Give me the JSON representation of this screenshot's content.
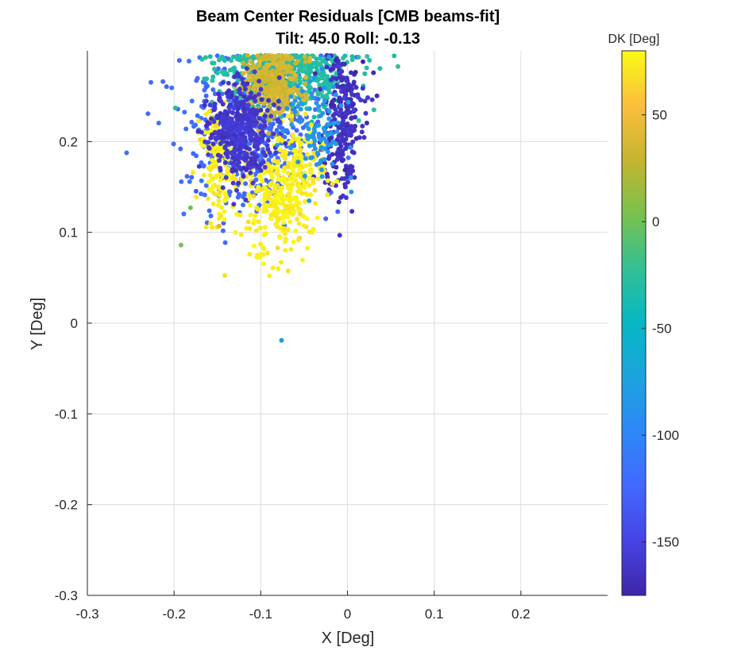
{
  "chart_data": {
    "type": "scatter",
    "title": "Beam Center Residuals [CMB beams-fit]",
    "subtitle": "Tilt: 45.0  Roll: -0.13",
    "xlabel": "X [Deg]",
    "ylabel": "Y [Deg]",
    "xlim": [
      -0.3,
      0.3
    ],
    "ylim": [
      -0.3,
      0.3
    ],
    "xticks": [
      -0.3,
      -0.2,
      -0.1,
      0,
      0.1,
      0.2
    ],
    "yticks": [
      -0.3,
      -0.2,
      -0.1,
      0,
      0.1,
      0.2
    ],
    "xtick_labels": [
      "-0.3",
      "-0.2",
      "-0.1",
      "0",
      "0.1",
      "0.2"
    ],
    "ytick_labels": [
      "-0.3",
      "-0.2",
      "-0.1",
      "0",
      "0.1",
      "0.2"
    ],
    "grid": true,
    "colorbar": {
      "title": "DK [Deg]",
      "range": [
        -175,
        80
      ],
      "ticks": [
        50,
        0,
        -50,
        -100,
        -150
      ],
      "tick_labels": [
        "50",
        "0",
        "-50",
        "-100",
        "-150"
      ],
      "colormap": "parula"
    },
    "clusters": [
      {
        "name": "c1",
        "cx": -0.124,
        "cy": 0.212,
        "sx": 0.018,
        "sy": 0.026,
        "dk": -160
      },
      {
        "name": "c2",
        "cx": -0.032,
        "cy": 0.215,
        "sx": 0.017,
        "sy": 0.032,
        "dk": -85
      },
      {
        "name": "c3",
        "cx": -0.058,
        "cy": 0.175,
        "sx": 0.018,
        "sy": 0.026,
        "dk": 75
      },
      {
        "name": "c4",
        "cx": -0.15,
        "cy": 0.175,
        "sx": 0.01,
        "sy": 0.03,
        "dk": 75
      },
      {
        "name": "c5",
        "cx": -0.085,
        "cy": 0.265,
        "sx": 0.015,
        "sy": 0.02,
        "dk": 35
      },
      {
        "name": "c6",
        "cx": -0.07,
        "cy": 0.275,
        "sx": 0.04,
        "sy": 0.018,
        "dk": -30
      },
      {
        "name": "c7",
        "cx": -0.005,
        "cy": 0.225,
        "sx": 0.012,
        "sy": 0.04,
        "dk": -165
      },
      {
        "name": "c8",
        "cx": -0.11,
        "cy": 0.215,
        "sx": 0.04,
        "sy": 0.045,
        "dk": -120
      },
      {
        "name": "c9",
        "cx": -0.08,
        "cy": 0.13,
        "sx": 0.02,
        "sy": 0.03,
        "dk": 75
      }
    ],
    "outliers": [
      {
        "x": -0.192,
        "y": 0.086,
        "dk": 5
      },
      {
        "x": -0.181,
        "y": 0.127,
        "dk": 0
      },
      {
        "x": -0.148,
        "y": 0.107,
        "dk": 40
      },
      {
        "x": -0.076,
        "y": -0.019,
        "dk": -80
      },
      {
        "x": -0.09,
        "y": 0.052,
        "dk": 75
      },
      {
        "x": -0.08,
        "y": 0.06,
        "dk": 75
      },
      {
        "x": -0.025,
        "y": 0.115,
        "dk": -130
      }
    ]
  }
}
